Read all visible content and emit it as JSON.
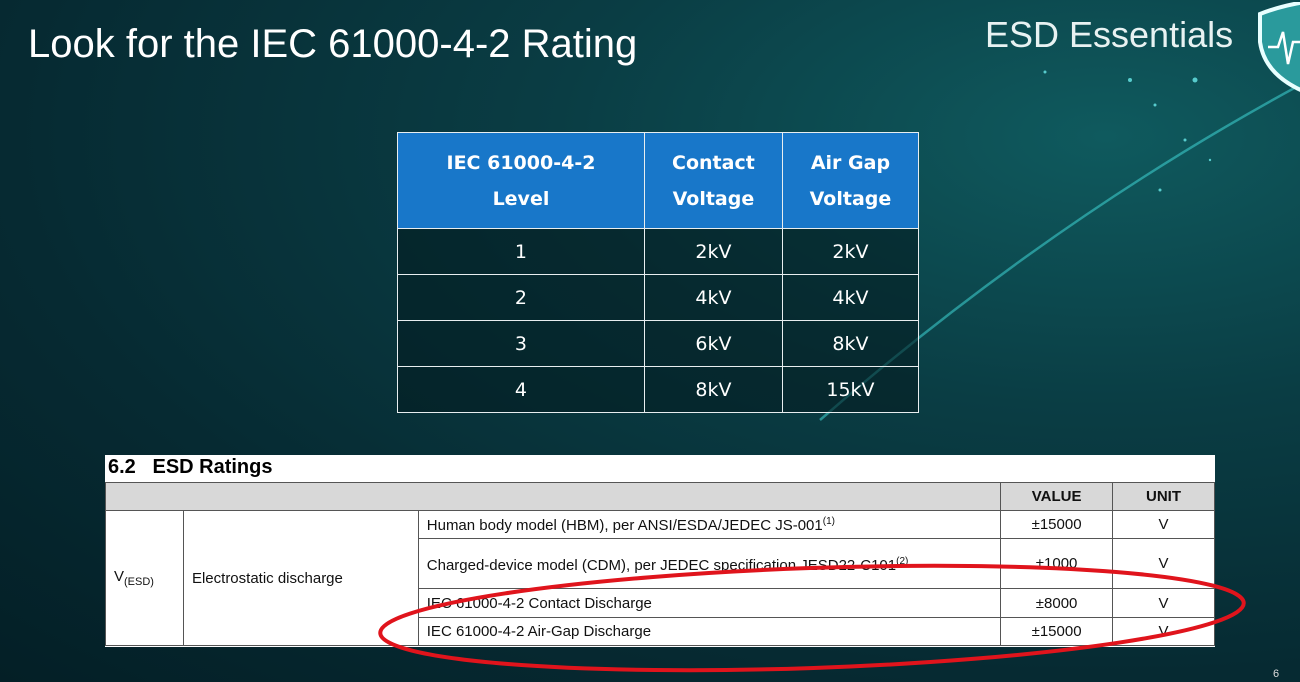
{
  "slide": {
    "title": "Look for the IEC 61000-4-2 Rating",
    "brand": "ESD Essentials",
    "page_number": "6"
  },
  "iec_table": {
    "headers": [
      [
        "IEC 61000-4-2",
        "Level"
      ],
      [
        "Contact",
        "Voltage"
      ],
      [
        "Air Gap",
        "Voltage"
      ]
    ],
    "rows": [
      [
        "1",
        "2kV",
        "2kV"
      ],
      [
        "2",
        "4kV",
        "4kV"
      ],
      [
        "3",
        "6kV",
        "8kV"
      ],
      [
        "4",
        "8kV",
        "15kV"
      ]
    ]
  },
  "esd_ratings": {
    "title": "6.2   ESD Ratings",
    "headers": {
      "value": "VALUE",
      "unit": "UNIT"
    },
    "symbol": "V",
    "symbol_sub": "(ESD)",
    "parameter": "Electrostatic discharge",
    "rows": [
      {
        "desc": "Human body model (HBM), per ANSI/ESDA/JEDEC JS-001",
        "note": "(1)",
        "value": "±15000",
        "unit": "V"
      },
      {
        "desc": "Charged-device model (CDM), per JEDEC specification JESD22-C101",
        "note": "(2)",
        "value": "±1000",
        "unit": "V"
      },
      {
        "desc": "IEC 61000-4-2 Contact Discharge",
        "note": "",
        "value": "±8000",
        "unit": "V"
      },
      {
        "desc": "IEC 61000-4-2 Air-Gap Discharge",
        "note": "",
        "value": "±15000",
        "unit": "V"
      }
    ]
  },
  "colors": {
    "header_blue": "#1877c9",
    "highlight_ring": "#e0141c"
  },
  "icons": {
    "brand_logo": "shield-heartbeat-icon"
  }
}
